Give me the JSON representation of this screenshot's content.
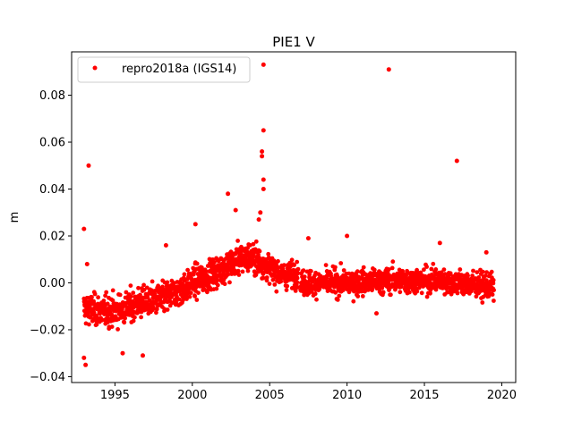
{
  "chart_data": {
    "type": "scatter",
    "title": "PIE1 V",
    "xlabel": "",
    "ylabel": "m",
    "xlim": [
      1992.2,
      2020.9
    ],
    "ylim": [
      -0.0425,
      0.0985
    ],
    "x_ticks": [
      1995,
      2000,
      2005,
      2010,
      2015,
      2020
    ],
    "x_tick_labels": [
      "1995",
      "2000",
      "2005",
      "2010",
      "2015",
      "2020"
    ],
    "y_ticks": [
      -0.04,
      -0.02,
      0.0,
      0.02,
      0.04,
      0.06,
      0.08
    ],
    "y_tick_labels": [
      "−0.04",
      "−0.02",
      "0.00",
      "0.02",
      "0.04",
      "0.06",
      "0.08"
    ],
    "grid": false,
    "legend_position": "top-left",
    "series": [
      {
        "name": "repro2018a (IGS14)",
        "color": "#ff0000",
        "trend": [
          {
            "x": 1993.0,
            "y": -0.011,
            "spread": 0.006
          },
          {
            "x": 1994.0,
            "y": -0.012,
            "spread": 0.006
          },
          {
            "x": 1995.0,
            "y": -0.012,
            "spread": 0.006
          },
          {
            "x": 1996.0,
            "y": -0.01,
            "spread": 0.006
          },
          {
            "x": 1997.0,
            "y": -0.008,
            "spread": 0.006
          },
          {
            "x": 1998.0,
            "y": -0.007,
            "spread": 0.006
          },
          {
            "x": 1999.0,
            "y": -0.004,
            "spread": 0.006
          },
          {
            "x": 2000.0,
            "y": 0.0,
            "spread": 0.006
          },
          {
            "x": 2001.0,
            "y": 0.003,
            "spread": 0.006
          },
          {
            "x": 2002.0,
            "y": 0.006,
            "spread": 0.006
          },
          {
            "x": 2003.0,
            "y": 0.01,
            "spread": 0.006
          },
          {
            "x": 2004.0,
            "y": 0.011,
            "spread": 0.006
          },
          {
            "x": 2005.0,
            "y": 0.006,
            "spread": 0.005
          },
          {
            "x": 2006.0,
            "y": 0.003,
            "spread": 0.005
          },
          {
            "x": 2006.8,
            "y": 0.004,
            "spread": 0.005
          },
          {
            "x": 2007.0,
            "y": 0.0,
            "spread": 0.005
          },
          {
            "x": 2010.0,
            "y": 0.0,
            "spread": 0.005
          },
          {
            "x": 2013.0,
            "y": 0.001,
            "spread": 0.005
          },
          {
            "x": 2016.0,
            "y": 0.001,
            "spread": 0.005
          },
          {
            "x": 2019.5,
            "y": -0.002,
            "spread": 0.005
          }
        ],
        "outliers": [
          {
            "x": 1993.0,
            "y": 0.023
          },
          {
            "x": 1993.3,
            "y": 0.05
          },
          {
            "x": 1993.1,
            "y": -0.035
          },
          {
            "x": 1993.0,
            "y": -0.032
          },
          {
            "x": 1993.2,
            "y": 0.008
          },
          {
            "x": 1995.5,
            "y": -0.03
          },
          {
            "x": 1996.8,
            "y": -0.031
          },
          {
            "x": 1998.3,
            "y": 0.016
          },
          {
            "x": 2000.2,
            "y": 0.025
          },
          {
            "x": 2002.3,
            "y": 0.038
          },
          {
            "x": 2002.8,
            "y": 0.031
          },
          {
            "x": 2004.6,
            "y": 0.093
          },
          {
            "x": 2004.6,
            "y": 0.065
          },
          {
            "x": 2004.5,
            "y": 0.056
          },
          {
            "x": 2004.5,
            "y": 0.054
          },
          {
            "x": 2004.6,
            "y": 0.044
          },
          {
            "x": 2004.6,
            "y": 0.04
          },
          {
            "x": 2004.4,
            "y": 0.03
          },
          {
            "x": 2004.3,
            "y": 0.027
          },
          {
            "x": 2007.5,
            "y": 0.019
          },
          {
            "x": 2010.0,
            "y": 0.02
          },
          {
            "x": 2012.7,
            "y": 0.091
          },
          {
            "x": 2017.1,
            "y": 0.052
          },
          {
            "x": 2016.0,
            "y": 0.017
          },
          {
            "x": 2011.9,
            "y": -0.013
          },
          {
            "x": 2019.0,
            "y": 0.013
          }
        ]
      }
    ]
  }
}
